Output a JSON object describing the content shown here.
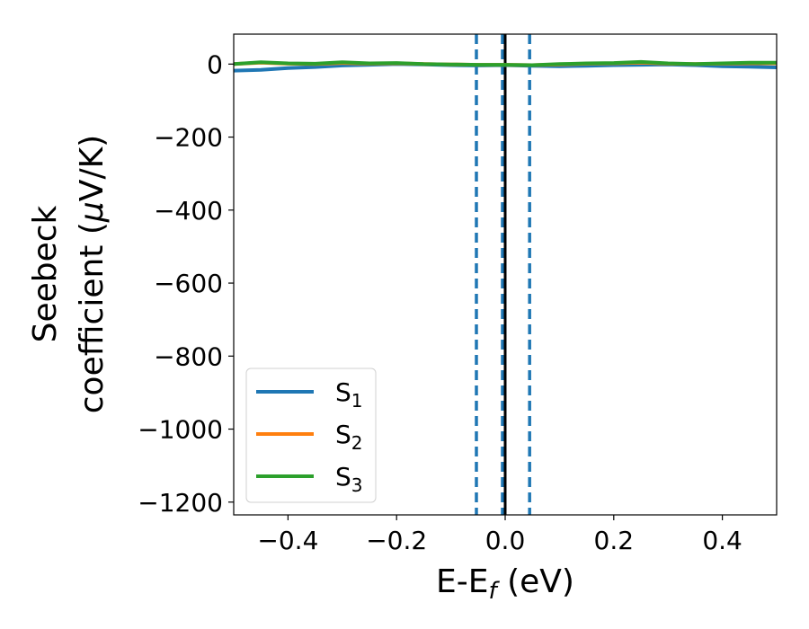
{
  "chart_data": {
    "type": "line",
    "title": "",
    "xlabel": "E-E",
    "xlabel_sub": "f",
    "xlabel_unit": " (eV)",
    "ylabel_line1": "Seebeck",
    "ylabel_line2": "coefficient  (",
    "ylabel_mu": "μ",
    "ylabel_unit": "V/K)",
    "xlim": [
      -0.5,
      0.5
    ],
    "ylim": [
      -1235,
      82
    ],
    "xticks": [
      -0.4,
      -0.2,
      0.0,
      0.2,
      0.4
    ],
    "xtick_labels": [
      "−0.4",
      "−0.2",
      "0.0",
      "0.2",
      "0.4"
    ],
    "yticks": [
      0,
      -200,
      -400,
      -600,
      -800,
      -1000,
      -1200
    ],
    "ytick_labels": [
      "0",
      "−200",
      "−400",
      "−600",
      "−800",
      "−1000",
      "−1200"
    ],
    "grid": false,
    "legend_position": "lower-left",
    "vlines": [
      {
        "x": -0.053,
        "style": "dashed",
        "color": "#1f77b4"
      },
      {
        "x": -0.005,
        "style": "dashed",
        "color": "#1f77b4"
      },
      {
        "x": 0.045,
        "style": "dashed",
        "color": "#1f77b4"
      },
      {
        "x": 0.0,
        "style": "solid",
        "color": "#000000"
      }
    ],
    "x": [
      -0.5,
      -0.45,
      -0.4,
      -0.35,
      -0.3,
      -0.25,
      -0.2,
      -0.15,
      -0.1,
      -0.05,
      0.0,
      0.05,
      0.1,
      0.15,
      0.2,
      0.25,
      0.3,
      0.35,
      0.4,
      0.45,
      0.5
    ],
    "series": [
      {
        "name": "S",
        "sub": "1",
        "color": "#1f77b4",
        "values": [
          -18,
          -16,
          -11,
          -8,
          -4,
          -2,
          0,
          -1,
          -3,
          -4,
          -3,
          -5,
          -6,
          -5,
          -3,
          -2,
          -1,
          -3,
          -6,
          -7,
          -9
        ]
      },
      {
        "name": "S",
        "sub": "2",
        "color": "#ff7f0e",
        "values": [
          0,
          4,
          1,
          0,
          3,
          1,
          2,
          0,
          -1,
          -2,
          -2,
          -3,
          -1,
          1,
          2,
          4,
          1,
          0,
          1,
          2,
          2
        ]
      },
      {
        "name": "S",
        "sub": "3",
        "color": "#2ca02c",
        "values": [
          0,
          5,
          2,
          1,
          5,
          2,
          3,
          0,
          -1,
          -2,
          -2,
          -3,
          0,
          2,
          3,
          6,
          2,
          0,
          2,
          4,
          4
        ]
      }
    ]
  }
}
